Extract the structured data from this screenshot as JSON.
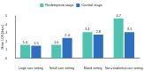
{
  "chart_data": {
    "type": "bar",
    "y_label": "Mean LOS (days)",
    "categories": [
      "Large care setting",
      "Small care setting",
      "Mixed setting",
      "Non-residential care setting"
    ],
    "series": [
      {
        "name": "Redemption stays",
        "color": "#4fc3b0",
        "values": [
          1.6,
          1.6,
          3.1,
          4.7
        ]
      },
      {
        "name": "Control stays",
        "color": "#2e6fc0",
        "values": [
          1.5,
          2.4,
          2.8,
          3.1
        ]
      }
    ],
    "ylim": [
      0,
      5
    ],
    "yticks": [
      0,
      1,
      2,
      3,
      4,
      5
    ],
    "grid": false,
    "legend": "top",
    "data_labels": true
  }
}
